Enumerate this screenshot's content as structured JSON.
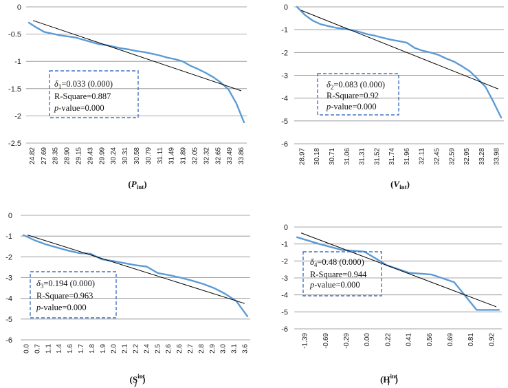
{
  "chart_data": [
    {
      "type": "line",
      "caption": {
        "main": "P",
        "sub": "int",
        "sup": ""
      },
      "ylim": [
        -2.5,
        0
      ],
      "yticks": [
        0,
        -0.5,
        -1,
        -1.5,
        -2,
        -2.5
      ],
      "ytick_labels": [
        "0",
        "-0.5",
        "-1",
        "-1.5",
        "-2",
        "-2.5"
      ],
      "x_tick_labels": [
        "24.82",
        "27.69",
        "28.35",
        "28.90",
        "29.15",
        "29.43",
        "29.99",
        "30.24",
        "30.31",
        "30.58",
        "30.79",
        "31.11",
        "31.49",
        "31.89",
        "32.05",
        "32.32",
        "32.65",
        "33.49",
        "33.86"
      ],
      "series": [
        {
          "name": "observed",
          "color": "#5B9BD5",
          "values": [
            -0.29,
            -0.38,
            -0.46,
            -0.49,
            -0.52,
            -0.54,
            -0.56,
            -0.6,
            -0.64,
            -0.68,
            -0.7,
            -0.73,
            -0.76,
            -0.78,
            -0.81,
            -0.83,
            -0.86,
            -0.89,
            -0.93,
            -0.96,
            -1.0,
            -1.08,
            -1.14,
            -1.21,
            -1.29,
            -1.39,
            -1.52,
            -1.77,
            -2.12
          ]
        },
        {
          "name": "fit",
          "color": "#000000",
          "values": [
            -0.25,
            -1.54
          ]
        }
      ],
      "annotation": {
        "delta_symbol": "δ",
        "delta_sub": "1",
        "delta_value": "=0.033 (0.000)",
        "r_square": "R-Square=0.887",
        "p_label": "p",
        "p_value": "-value=0.000"
      }
    },
    {
      "type": "line",
      "caption": {
        "main": "V",
        "sub": "int",
        "sup": ""
      },
      "ylim": [
        -6,
        0
      ],
      "yticks": [
        0,
        -1,
        -2,
        -3,
        -4,
        -5,
        -6
      ],
      "ytick_labels": [
        "0",
        "-1",
        "-2",
        "-3",
        "-4",
        "-5",
        "-6"
      ],
      "x_tick_labels": [
        "28.97",
        "30.18",
        "30.71",
        "31.06",
        "31.31",
        "31.52",
        "31.74",
        "31.96",
        "32.11",
        "32.45",
        "32.59",
        "32.95",
        "33.28",
        "33.98"
      ],
      "series": [
        {
          "name": "observed",
          "color": "#5B9BD5",
          "values": [
            0.0,
            -0.35,
            -0.6,
            -0.76,
            -0.84,
            -0.92,
            -0.96,
            -1.02,
            -1.1,
            -1.2,
            -1.27,
            -1.36,
            -1.44,
            -1.5,
            -1.57,
            -1.8,
            -1.92,
            -2.0,
            -2.1,
            -2.26,
            -2.4,
            -2.6,
            -2.82,
            -3.15,
            -3.5,
            -4.15,
            -4.85
          ]
        },
        {
          "name": "fit",
          "color": "#000000",
          "values": [
            -0.15,
            -3.6
          ]
        }
      ],
      "annotation": {
        "delta_symbol": "δ",
        "delta_sub": "2",
        "delta_value": "=0.083 (0.000)",
        "r_square": "R-Square=0.92",
        "p_label": "p",
        "p_value": "-value=0.000"
      }
    },
    {
      "type": "line",
      "caption": {
        "main": "S",
        "sub": "j",
        "sup": "int"
      },
      "ylim": [
        -6,
        0
      ],
      "yticks": [
        0,
        -1,
        -2,
        -3,
        -4,
        -5,
        -6
      ],
      "ytick_labels": [
        "0",
        "-1",
        "-2",
        "-3",
        "-4",
        "-5",
        "-6"
      ],
      "x_tick_labels": [
        "0.0",
        "0.7",
        "1.1",
        "1.4",
        "1.6",
        "1.7",
        "1.8",
        "1.9",
        "2.0",
        "2.1",
        "2.2",
        "2.4",
        "2.5",
        "2.6",
        "2.6",
        "2.7",
        "2.8",
        "2.9",
        "3.0",
        "3.1",
        "3.6"
      ],
      "series": [
        {
          "name": "observed",
          "color": "#5B9BD5",
          "values": [
            -0.95,
            -1.2,
            -1.4,
            -1.55,
            -1.7,
            -1.82,
            -1.85,
            -2.12,
            -2.2,
            -2.3,
            -2.4,
            -2.47,
            -2.78,
            -2.88,
            -3.0,
            -3.14,
            -3.3,
            -3.5,
            -3.78,
            -4.13,
            -4.87
          ]
        },
        {
          "name": "fit",
          "color": "#000000",
          "values": [
            -0.95,
            -4.25
          ]
        }
      ],
      "annotation": {
        "delta_symbol": "δ",
        "delta_sub": "3",
        "delta_value": "=0.194 (0.000)",
        "r_square": "R-Square=0.963",
        "p_label": "p",
        "p_value": "-value=0.000"
      }
    },
    {
      "type": "line",
      "caption": {
        "main": "H",
        "sub": "i",
        "sup": "int"
      },
      "ylim": [
        -6,
        0
      ],
      "yticks": [
        0,
        -1,
        -2,
        -3,
        -4,
        -5,
        -6
      ],
      "ytick_labels": [
        "0",
        "-1",
        "-2",
        "-3",
        "-4",
        "-5",
        "-6"
      ],
      "x_tick_labels": [
        "-1.39",
        "-0.69",
        "-0.29",
        "0.00",
        "0.22",
        "0.41",
        "0.56",
        "0.69",
        "0.81",
        "0.92"
      ],
      "series": [
        {
          "name": "observed",
          "color": "#5B9BD5",
          "values": [
            -0.6,
            -1.0,
            -1.35,
            -1.45,
            -2.25,
            -2.7,
            -2.8,
            -3.25,
            -4.88,
            -4.88
          ]
        },
        {
          "name": "fit",
          "color": "#000000",
          "values": [
            -0.35,
            -4.7
          ]
        }
      ],
      "annotation": {
        "delta_symbol": "δ",
        "delta_sub": "4",
        "delta_value": "=0.48 (0.000)",
        "r_square": "R-Square=0.944",
        "p_label": "p",
        "p_value": "-value=0.000"
      }
    }
  ]
}
